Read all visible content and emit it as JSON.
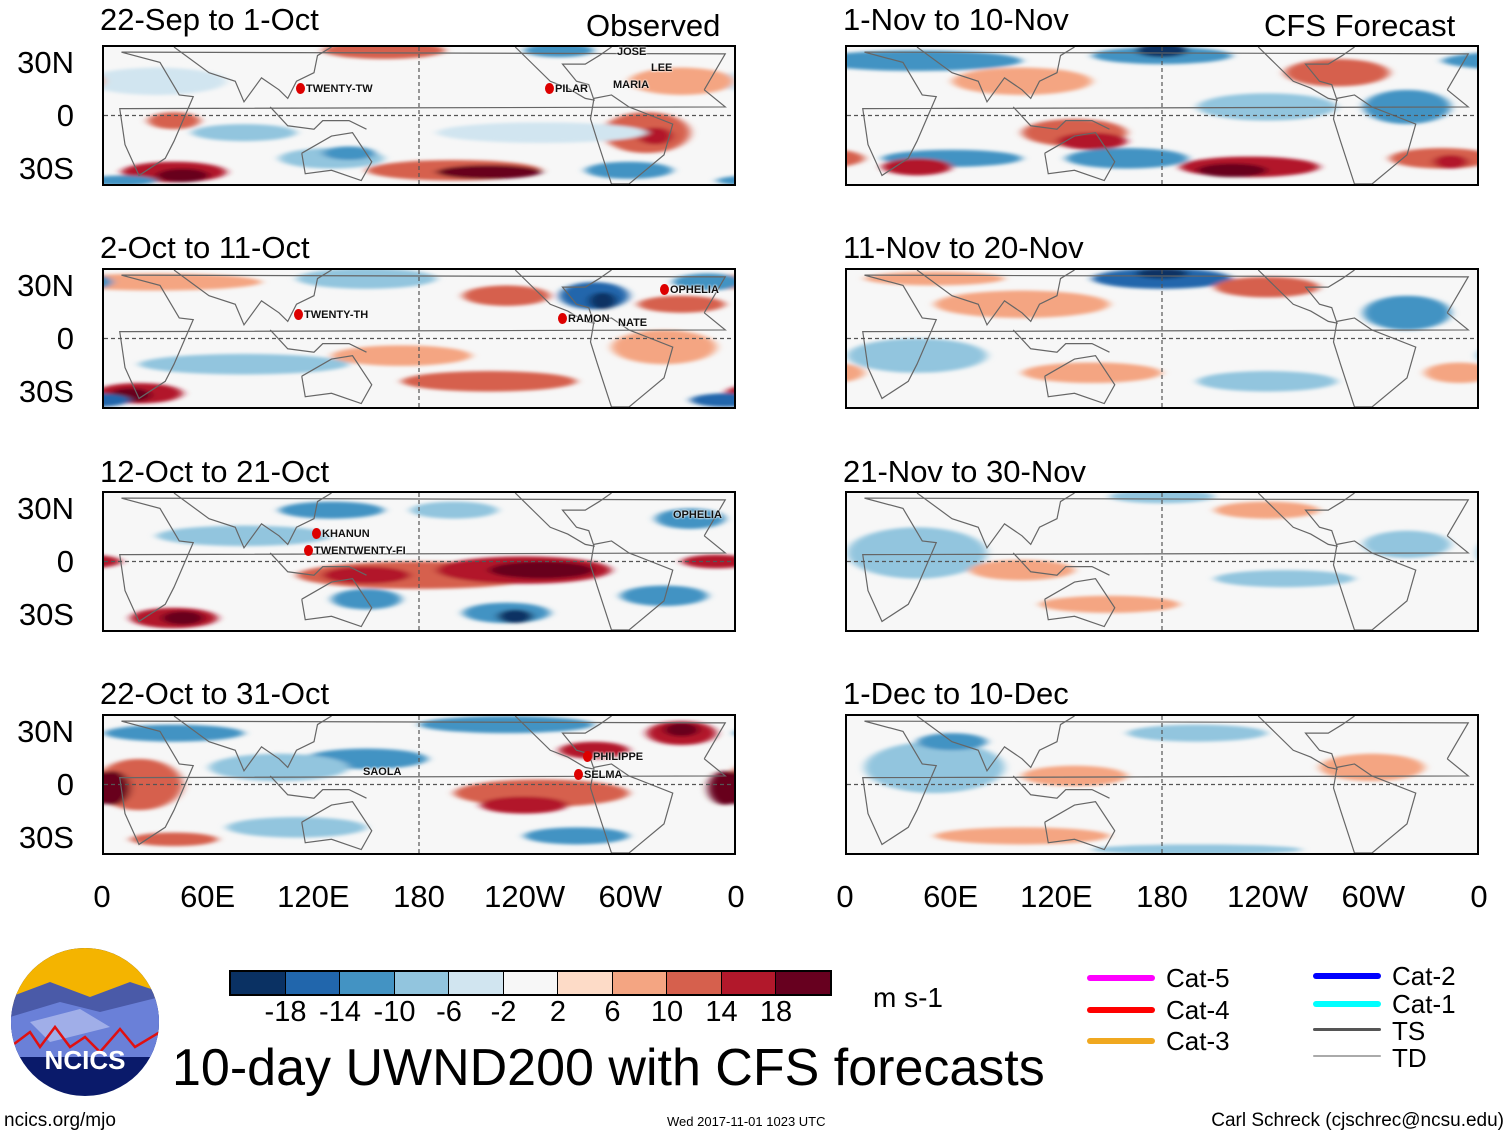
{
  "figure": {
    "title": "10-day UWND200 with CFS forecasts",
    "left_header": "Observed",
    "right_header": "CFS Forecast",
    "website": "ncics.org/mjo",
    "timestamp": "Wed 2017-11-01 1023 UTC",
    "author": "Carl Schreck (cjschrec@ncsu.edu)",
    "logo_text": "NCICS"
  },
  "chart_data": {
    "type": "heatmap",
    "variable": "200-hPa zonal wind anomaly",
    "units": "m s-1",
    "panels": [
      {
        "title": "22-Sep to 1-Oct",
        "source": "Observed",
        "storms": [
          "TWENTY-TW",
          "PILAR",
          "JOSE",
          "LEE",
          "MARIA"
        ]
      },
      {
        "title": "2-Oct to 11-Oct",
        "source": "Observed",
        "storms": [
          "TWENTY-TH",
          "RAMON",
          "NATE",
          "OPHELIA"
        ]
      },
      {
        "title": "12-Oct to 21-Oct",
        "source": "Observed",
        "storms": [
          "KHANUN",
          "TWENTWENTY-FI",
          "OPHELIA"
        ]
      },
      {
        "title": "22-Oct to 31-Oct",
        "source": "Observed",
        "storms": [
          "SAOLA",
          "PHILIPPE",
          "SELMA"
        ]
      },
      {
        "title": "1-Nov to 10-Nov",
        "source": "CFS Forecast",
        "storms": []
      },
      {
        "title": "11-Nov to 20-Nov",
        "source": "CFS Forecast",
        "storms": []
      },
      {
        "title": "21-Nov to 30-Nov",
        "source": "CFS Forecast",
        "storms": []
      },
      {
        "title": "1-Dec to 10-Dec",
        "source": "CFS Forecast",
        "storms": []
      }
    ],
    "lat_ticks": [
      "30N",
      "0",
      "30S"
    ],
    "lon_ticks": [
      "0",
      "60E",
      "120E",
      "180",
      "120W",
      "60W",
      "0"
    ],
    "lat_range": [
      -40,
      40
    ],
    "lon_range": [
      0,
      360
    ],
    "colorbar": {
      "levels": [
        "-18",
        "-14",
        "-10",
        "-6",
        "-2",
        "2",
        "6",
        "10",
        "14",
        "18"
      ],
      "colors": [
        "#0a3163",
        "#2166ac",
        "#4393c3",
        "#92c5de",
        "#d1e5f0",
        "#f7f7f7",
        "#fddbc7",
        "#f4a582",
        "#d6604d",
        "#b2182b",
        "#67001f"
      ],
      "units": "m s-1"
    },
    "track_legend": [
      {
        "label": "Cat-5",
        "color": "#ff00ff"
      },
      {
        "label": "Cat-4",
        "color": "#ff0000"
      },
      {
        "label": "Cat-3",
        "color": "#f0a820"
      },
      {
        "label": "Cat-2",
        "color": "#0000ff"
      },
      {
        "label": "Cat-1",
        "color": "#00ffff"
      },
      {
        "label": "TS",
        "color": "#555555"
      },
      {
        "label": "TD",
        "color": "#aaaaaa"
      }
    ]
  }
}
